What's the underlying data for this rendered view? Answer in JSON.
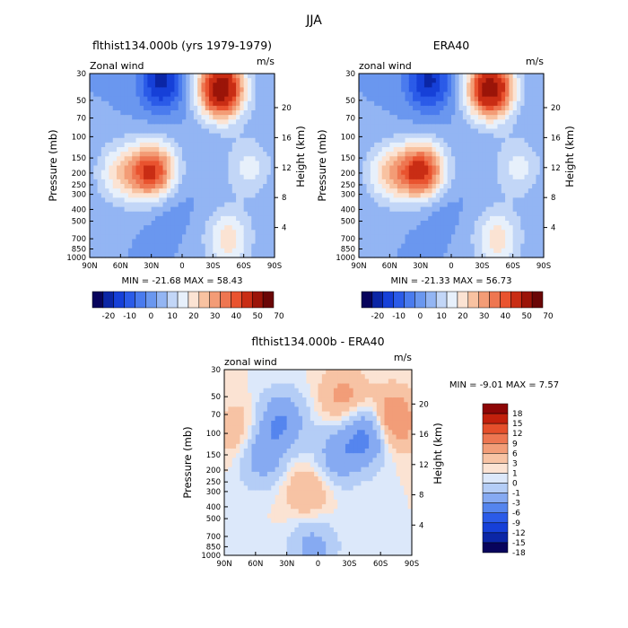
{
  "figure": {
    "title": "JJA"
  },
  "palettes": {
    "full": [
      "#08045c",
      "#0b26a6",
      "#1640d8",
      "#2b5be8",
      "#4a7bee",
      "#6a97ef",
      "#93b5f3",
      "#c2d6f7",
      "#e7f0fb",
      "#fbe3d3",
      "#f8c2a1",
      "#f39c76",
      "#ee7651",
      "#e9532f",
      "#c92d14",
      "#9b1408",
      "#6a0606"
    ],
    "diff": [
      "#08045c",
      "#0b26a6",
      "#1640d8",
      "#2b5be8",
      "#5585ee",
      "#86aaf2",
      "#b4cdf6",
      "#dce8fa",
      "#fbe3d3",
      "#f7c3a4",
      "#f29d78",
      "#ed7651",
      "#e54f2b",
      "#c2200c",
      "#8d0606"
    ]
  },
  "chart_data": [
    {
      "id": "model",
      "type": "heatmap",
      "title": "flthist134.000b (yrs 1979-1979)",
      "left_label": "Zonal wind",
      "right_label": "m/s",
      "xlabel": "",
      "ylabel": "Pressure (mb)",
      "y2label": "Height (km)",
      "x_ticks": [
        "90N",
        "60N",
        "30N",
        "0",
        "30S",
        "60S",
        "90S"
      ],
      "y_ticks": [
        "30",
        "50",
        "70",
        "100",
        "150",
        "200",
        "250",
        "300",
        "400",
        "500",
        "700",
        "850",
        "1000"
      ],
      "y2_ticks": [
        "20",
        "16",
        "12",
        "8",
        "4"
      ],
      "xlim": [
        90,
        -90
      ],
      "ylim": [
        1000,
        30
      ],
      "stats": "MIN = -21.68   MAX = 58.43",
      "min": -21.68,
      "max": 58.43,
      "colorbar": {
        "orientation": "horizontal",
        "labels": [
          "-20",
          "-10",
          "0",
          "10",
          "20",
          "30",
          "40",
          "50",
          "70"
        ]
      },
      "features": [
        {
          "lat": 60,
          "p": 200,
          "value": 18
        },
        {
          "lat": 20,
          "p": 35,
          "value": -21.68
        },
        {
          "lat": 20,
          "p": 300,
          "value": -8
        },
        {
          "lat": 28,
          "p": 200,
          "value": 44
        },
        {
          "lat": -38,
          "p": 40,
          "value": 58.43
        },
        {
          "lat": -45,
          "p": 700,
          "value": 18
        },
        {
          "lat": -65,
          "p": 180,
          "value": 12
        }
      ]
    },
    {
      "id": "era40",
      "type": "heatmap",
      "title": "ERA40",
      "left_label": "zonal wind",
      "right_label": "m/s",
      "xlabel": "",
      "ylabel": "Pressure (mb)",
      "y2label": "Height (km)",
      "x_ticks": [
        "90N",
        "60N",
        "30N",
        "0",
        "30S",
        "60S",
        "90S"
      ],
      "y_ticks": [
        "30",
        "50",
        "70",
        "100",
        "150",
        "200",
        "250",
        "300",
        "400",
        "500",
        "700",
        "850",
        "1000"
      ],
      "y2_ticks": [
        "20",
        "16",
        "12",
        "8",
        "4"
      ],
      "xlim": [
        90,
        -90
      ],
      "ylim": [
        1000,
        30
      ],
      "stats": "MIN = -21.33   MAX = 56.73",
      "min": -21.33,
      "max": 56.73,
      "colorbar": {
        "orientation": "horizontal",
        "labels": [
          "-20",
          "-10",
          "0",
          "10",
          "20",
          "30",
          "40",
          "50",
          "70"
        ]
      },
      "features": [
        {
          "lat": 60,
          "p": 200,
          "value": 20
        },
        {
          "lat": 22,
          "p": 35,
          "value": -21.33
        },
        {
          "lat": 20,
          "p": 300,
          "value": -8
        },
        {
          "lat": 28,
          "p": 200,
          "value": 46
        },
        {
          "lat": -38,
          "p": 40,
          "value": 56.73
        },
        {
          "lat": -45,
          "p": 700,
          "value": 18
        },
        {
          "lat": -65,
          "p": 180,
          "value": 12
        }
      ]
    },
    {
      "id": "diff",
      "type": "heatmap",
      "title": "flthist134.000b - ERA40",
      "left_label": "zonal wind",
      "right_label": "m/s",
      "xlabel": "",
      "ylabel": "Pressure (mb)",
      "y2label": "Height (km)",
      "x_ticks": [
        "90N",
        "60N",
        "30N",
        "0",
        "30S",
        "60S",
        "90S"
      ],
      "y_ticks": [
        "30",
        "50",
        "70",
        "100",
        "150",
        "200",
        "250",
        "300",
        "400",
        "500",
        "700",
        "850",
        "1000"
      ],
      "y2_ticks": [
        "20",
        "16",
        "12",
        "8",
        "4"
      ],
      "xlim": [
        90,
        -90
      ],
      "ylim": [
        1000,
        30
      ],
      "stats": "MIN =  -9.01   MAX =   7.57",
      "min": -9.01,
      "max": 7.57,
      "colorbar": {
        "orientation": "vertical",
        "labels": [
          "18",
          "15",
          "12",
          "9",
          "6",
          "3",
          "1",
          "0",
          "-1",
          "-3",
          "-6",
          "-9",
          "-12",
          "-15",
          "-18"
        ]
      },
      "features": [
        {
          "lat": 75,
          "p": 100,
          "value": 3
        },
        {
          "lat": 55,
          "p": 150,
          "value": -5
        },
        {
          "lat": 35,
          "p": 80,
          "value": -6
        },
        {
          "lat": 10,
          "p": 300,
          "value": 3
        },
        {
          "lat": -20,
          "p": 150,
          "value": -5
        },
        {
          "lat": -25,
          "p": 50,
          "value": 4
        },
        {
          "lat": -50,
          "p": 100,
          "value": -8
        },
        {
          "lat": -70,
          "p": 80,
          "value": 7.57
        },
        {
          "lat": 5,
          "p": 850,
          "value": -4
        }
      ]
    }
  ]
}
